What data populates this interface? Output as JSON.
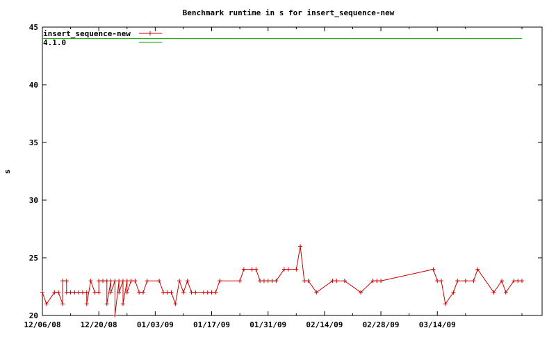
{
  "chart_data": {
    "type": "line",
    "title": "Benchmark runtime in s for insert_sequence-new",
    "xlabel": "",
    "ylabel": "s",
    "xlim": [
      "2008-12-06",
      "2009-04-09"
    ],
    "ylim": [
      20,
      45
    ],
    "x_ticks": [
      "12/06/08",
      "12/20/08",
      "01/03/09",
      "01/17/09",
      "01/31/09",
      "02/14/09",
      "02/28/09",
      "03/14/09"
    ],
    "y_ticks": [
      20,
      25,
      30,
      35,
      40,
      45
    ],
    "grid": false,
    "legend_position": "top-left",
    "series": [
      {
        "name": "insert_sequence-new",
        "color": "#cc0000",
        "marker": "plus",
        "points": [
          [
            "2008-12-06",
            22
          ],
          [
            "2008-12-07",
            21
          ],
          [
            "2008-12-09",
            22
          ],
          [
            "2008-12-10",
            22
          ],
          [
            "2008-12-11",
            21
          ],
          [
            "2008-12-11",
            23
          ],
          [
            "2008-12-12",
            23
          ],
          [
            "2008-12-12",
            22
          ],
          [
            "2008-12-13",
            22
          ],
          [
            "2008-12-14",
            22
          ],
          [
            "2008-12-15",
            22
          ],
          [
            "2008-12-16",
            22
          ],
          [
            "2008-12-17",
            22
          ],
          [
            "2008-12-17",
            21
          ],
          [
            "2008-12-18",
            23
          ],
          [
            "2008-12-19",
            22
          ],
          [
            "2008-12-20",
            22
          ],
          [
            "2008-12-20",
            23
          ],
          [
            "2008-12-21",
            23
          ],
          [
            "2008-12-22",
            23
          ],
          [
            "2008-12-22",
            21
          ],
          [
            "2008-12-23",
            23
          ],
          [
            "2008-12-23",
            22
          ],
          [
            "2008-12-24",
            23
          ],
          [
            "2008-12-24",
            20
          ],
          [
            "2008-12-25",
            23
          ],
          [
            "2008-12-25",
            22
          ],
          [
            "2008-12-26",
            23
          ],
          [
            "2008-12-26",
            21
          ],
          [
            "2008-12-27",
            23
          ],
          [
            "2008-12-27",
            22
          ],
          [
            "2008-12-28",
            23
          ],
          [
            "2008-12-29",
            23
          ],
          [
            "2008-12-30",
            22
          ],
          [
            "2008-12-31",
            22
          ],
          [
            "2009-01-01",
            23
          ],
          [
            "2009-01-04",
            23
          ],
          [
            "2009-01-05",
            22
          ],
          [
            "2009-01-06",
            22
          ],
          [
            "2009-01-07",
            22
          ],
          [
            "2009-01-08",
            21
          ],
          [
            "2009-01-09",
            23
          ],
          [
            "2009-01-10",
            22
          ],
          [
            "2009-01-11",
            23
          ],
          [
            "2009-01-12",
            22
          ],
          [
            "2009-01-13",
            22
          ],
          [
            "2009-01-15",
            22
          ],
          [
            "2009-01-16",
            22
          ],
          [
            "2009-01-17",
            22
          ],
          [
            "2009-01-18",
            22
          ],
          [
            "2009-01-19",
            23
          ],
          [
            "2009-01-24",
            23
          ],
          [
            "2009-01-25",
            24
          ],
          [
            "2009-01-27",
            24
          ],
          [
            "2009-01-28",
            24
          ],
          [
            "2009-01-29",
            23
          ],
          [
            "2009-01-30",
            23
          ],
          [
            "2009-01-31",
            23
          ],
          [
            "2009-02-01",
            23
          ],
          [
            "2009-02-02",
            23
          ],
          [
            "2009-02-04",
            24
          ],
          [
            "2009-02-05",
            24
          ],
          [
            "2009-02-07",
            24
          ],
          [
            "2009-02-08",
            26
          ],
          [
            "2009-02-09",
            23
          ],
          [
            "2009-02-10",
            23
          ],
          [
            "2009-02-12",
            22
          ],
          [
            "2009-02-16",
            23
          ],
          [
            "2009-02-17",
            23
          ],
          [
            "2009-02-19",
            23
          ],
          [
            "2009-02-23",
            22
          ],
          [
            "2009-02-26",
            23
          ],
          [
            "2009-02-27",
            23
          ],
          [
            "2009-02-28",
            23
          ],
          [
            "2009-03-13",
            24
          ],
          [
            "2009-03-14",
            23
          ],
          [
            "2009-03-15",
            23
          ],
          [
            "2009-03-16",
            21
          ],
          [
            "2009-03-18",
            22
          ],
          [
            "2009-03-19",
            23
          ],
          [
            "2009-03-21",
            23
          ],
          [
            "2009-03-23",
            23
          ],
          [
            "2009-03-24",
            24
          ],
          [
            "2009-03-28",
            22
          ],
          [
            "2009-03-30",
            23
          ],
          [
            "2009-03-31",
            22
          ],
          [
            "2009-04-02",
            23
          ],
          [
            "2009-04-03",
            23
          ],
          [
            "2009-04-04",
            23
          ]
        ]
      },
      {
        "name": "4.1.0",
        "color": "#00a000",
        "marker": "none",
        "points": [
          [
            "2008-12-06",
            44
          ],
          [
            "2009-04-04",
            44
          ]
        ]
      }
    ]
  }
}
